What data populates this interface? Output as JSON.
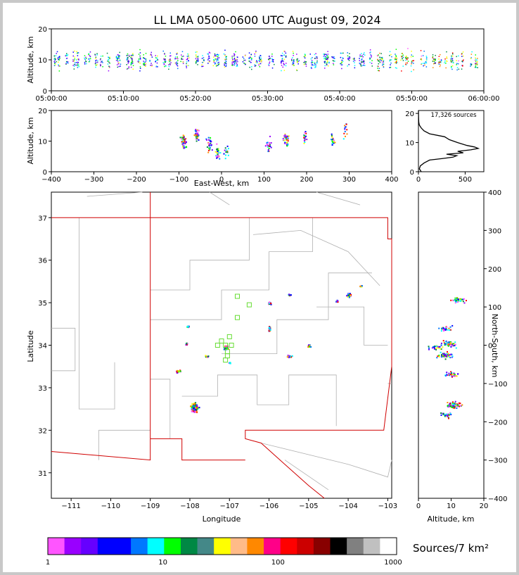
{
  "title": "LL LMA 0500-0600 UTC August 09, 2024",
  "colors": {
    "frame_bg": "#c8c8c8",
    "map_border": "#d00000",
    "county_line": "#b0b0b0",
    "station": "#66dd33"
  },
  "chart_data": [
    {
      "type": "scatter",
      "name": "time-height",
      "ylabel": "Altitude, km",
      "xlim": [
        "05:00:00",
        "06:00:00"
      ],
      "ylim": [
        0,
        20
      ],
      "xticks": [
        "05:00:00",
        "05:10:00",
        "05:20:00",
        "05:30:00",
        "05:40:00",
        "05:50:00",
        "06:00:00"
      ],
      "yticks": [
        "0",
        "10",
        "20"
      ]
    },
    {
      "type": "scatter",
      "name": "east-west-height",
      "xlabel": "East-West, km",
      "ylabel": "Altitude, km",
      "xlim": [
        -400,
        400
      ],
      "ylim": [
        0,
        20
      ],
      "xticks": [
        "−400",
        "−300",
        "−200",
        "−100",
        "0",
        "100",
        "200",
        "300",
        "400"
      ],
      "yticks": [
        "0",
        "10",
        "20"
      ]
    },
    {
      "type": "line",
      "name": "altitude-histogram",
      "annotation": "17,326 sources",
      "xlim": [
        0,
        700
      ],
      "ylim": [
        0,
        21
      ],
      "xticks": [
        "0",
        "500"
      ],
      "yticks": [
        "0",
        "10",
        "20"
      ]
    },
    {
      "type": "scatter",
      "name": "plan-view",
      "xlabel": "Longitude",
      "ylabel": "Latitude",
      "xlim": [
        -111.5,
        -102.9
      ],
      "ylim": [
        30.4,
        37.6
      ],
      "xticks": [
        "−111",
        "−110",
        "−109",
        "−108",
        "−107",
        "−106",
        "−105",
        "−104",
        "−103"
      ],
      "yticks": [
        "31",
        "32",
        "33",
        "34",
        "35",
        "36",
        "37"
      ]
    },
    {
      "type": "scatter",
      "name": "north-south-height",
      "xlabel": "Altitude, km",
      "ylabel": "North-South, km",
      "xlim": [
        0,
        20
      ],
      "ylim": [
        -400,
        400
      ],
      "xticks": [
        "0",
        "10",
        "20"
      ],
      "yticks": [
        "−400",
        "−300",
        "−200",
        "−100",
        "0",
        "100",
        "200",
        "300",
        "400"
      ]
    },
    {
      "type": "heatmap",
      "name": "colorbar",
      "label": "Sources/7 km²",
      "ticks": [
        "1",
        "10",
        "100",
        "1000"
      ],
      "colors": [
        "#ff55ff",
        "#9900ff",
        "#6600ff",
        "#0000ff",
        "#0000ff",
        "#0077ff",
        "#00ffff",
        "#00ff00",
        "#008844",
        "#448888",
        "#ffff00",
        "#ffbb88",
        "#ff8800",
        "#ff0088",
        "#ff0000",
        "#cc0000",
        "#880000",
        "#000000",
        "#808080",
        "#c0c0c0",
        "#ffffff"
      ]
    }
  ]
}
